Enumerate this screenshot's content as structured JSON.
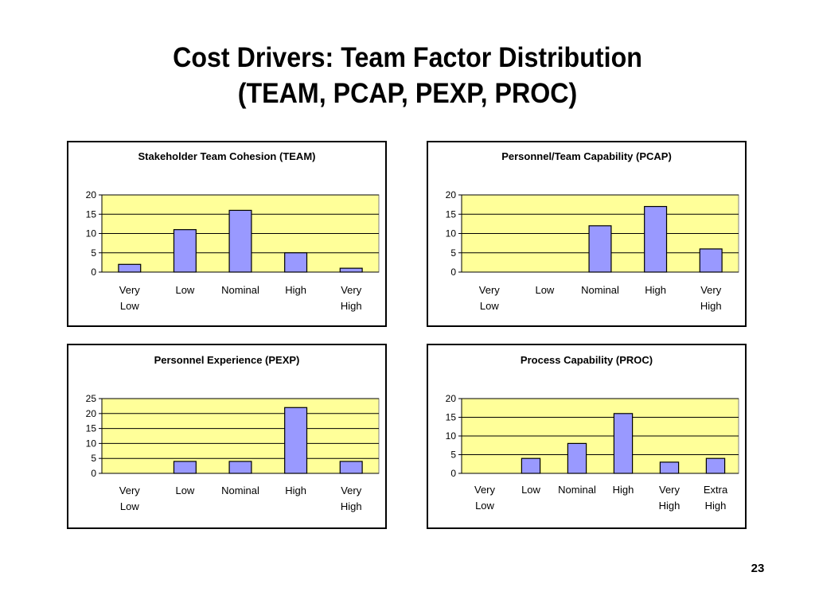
{
  "slide": {
    "title_line1": "Cost Drivers: Team Factor Distribution",
    "title_line2": "(TEAM, PCAP, PEXP, PROC)",
    "page_number": "23"
  },
  "colors": {
    "plot_background": "#ffff99",
    "bar_fill": "#9999ff",
    "bar_stroke": "#000000",
    "gridline": "#000000"
  },
  "chart_data": [
    {
      "type": "bar",
      "title": "Stakeholder Team Cohesion (TEAM)",
      "categories": [
        [
          "Very",
          "Low"
        ],
        [
          "Low"
        ],
        [
          "Nominal"
        ],
        [
          "High"
        ],
        [
          "Very",
          "High"
        ]
      ],
      "values": [
        2,
        11,
        16,
        5,
        1
      ],
      "ylim": [
        0,
        20
      ],
      "yticks": [
        0,
        5,
        10,
        15,
        20
      ],
      "grid": true,
      "legend": "none"
    },
    {
      "type": "bar",
      "title": "Personnel/Team Capability (PCAP)",
      "categories": [
        [
          "Very",
          "Low"
        ],
        [
          "Low"
        ],
        [
          "Nominal"
        ],
        [
          "High"
        ],
        [
          "Very",
          "High"
        ]
      ],
      "values": [
        0,
        0,
        12,
        17,
        6
      ],
      "ylim": [
        0,
        20
      ],
      "yticks": [
        0,
        5,
        10,
        15,
        20
      ],
      "grid": true,
      "legend": "none"
    },
    {
      "type": "bar",
      "title": "Personnel Experience (PEXP)",
      "categories": [
        [
          "Very",
          "Low"
        ],
        [
          "Low"
        ],
        [
          "Nominal"
        ],
        [
          "High"
        ],
        [
          "Very",
          "High"
        ]
      ],
      "values": [
        0,
        4,
        4,
        22,
        4
      ],
      "ylim": [
        0,
        25
      ],
      "yticks": [
        0,
        5,
        10,
        15,
        20,
        25
      ],
      "grid": true,
      "legend": "none"
    },
    {
      "type": "bar",
      "title": "Process Capability (PROC)",
      "categories": [
        [
          "Very",
          "Low"
        ],
        [
          "Low"
        ],
        [
          "Nominal"
        ],
        [
          "High"
        ],
        [
          "Very",
          "High"
        ],
        [
          "Extra",
          "High"
        ]
      ],
      "values": [
        0,
        4,
        8,
        16,
        3,
        4
      ],
      "ylim": [
        0,
        20
      ],
      "yticks": [
        0,
        5,
        10,
        15,
        20
      ],
      "grid": true,
      "legend": "none"
    }
  ]
}
